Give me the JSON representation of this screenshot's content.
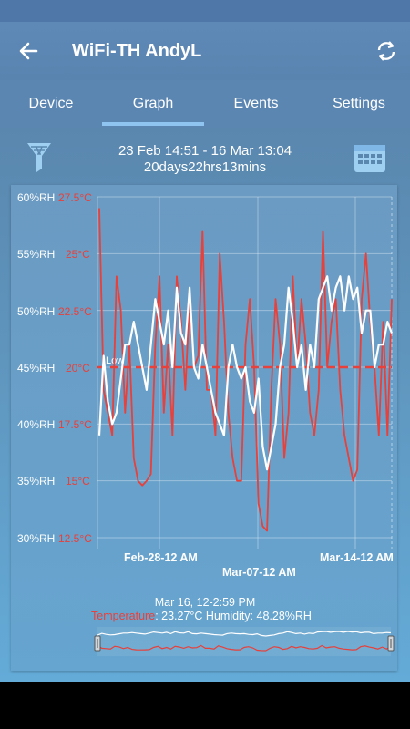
{
  "app": {
    "title": "WiFi-TH AndyL",
    "tabs": [
      {
        "label": "Device"
      },
      {
        "label": "Graph",
        "active": true
      },
      {
        "label": "Events"
      },
      {
        "label": "Settings"
      }
    ]
  },
  "range": {
    "dates": "23 Feb 14:51 - 16 Mar 13:04",
    "duration": "20days22hrs13mins"
  },
  "info": {
    "timestamp": "Mar 16, 12-2:59 PM",
    "temp_label": "Temperature",
    "temp_value": ": 23.27°C",
    "humidity": " Humidity: 48.28%RH"
  },
  "colors": {
    "temperature": "#e8403a",
    "humidity": "#ffffff",
    "low_line": "#e8403a"
  },
  "chart_data": {
    "type": "line",
    "y_left_ticks": [
      "60%RH",
      "55%RH",
      "50%RH",
      "45%RH",
      "40%RH",
      "35%RH",
      "30%RH"
    ],
    "y_right_ticks": [
      "27.5°C",
      "25°C",
      "22.5°C",
      "20°C",
      "17.5°C",
      "15°C",
      "12.5°C"
    ],
    "x_ticks": [
      "Feb-28-12 AM",
      "Mar-07-12 AM",
      "Mar-14-12 AM"
    ],
    "low_label": "Low",
    "humidity_ylim": [
      30,
      60
    ],
    "temp_ylim": [
      12.5,
      27.5
    ],
    "low_threshold": 20,
    "series": [
      {
        "name": "Temperature",
        "unit": "°C",
        "values": [
          27,
          19,
          18,
          17,
          24,
          22.5,
          18,
          21,
          16,
          15,
          14.8,
          15,
          15.3,
          21,
          24,
          18,
          21,
          17,
          24,
          22,
          19,
          23,
          20,
          20.5,
          26,
          19,
          19,
          17,
          25,
          22,
          18,
          16,
          15,
          15,
          21,
          23,
          20,
          14,
          13,
          12.8,
          19,
          23,
          21,
          16,
          18,
          24,
          20,
          23,
          21,
          18,
          17,
          19,
          26,
          20,
          22,
          23,
          19,
          17,
          16,
          15,
          15.5,
          23,
          25,
          22,
          20,
          17,
          22,
          17,
          23
        ]
      },
      {
        "name": "Humidity",
        "unit": "%RH",
        "values": [
          39,
          46,
          42,
          40,
          41,
          44,
          47,
          47,
          49,
          47,
          45,
          43,
          47,
          51,
          49,
          47,
          50,
          45,
          52,
          48,
          47,
          52,
          45,
          44,
          47,
          45,
          43,
          41,
          40,
          39,
          45,
          47,
          45,
          44,
          45,
          42,
          41,
          44,
          38,
          36,
          38,
          40,
          45,
          47,
          52,
          49,
          45,
          47,
          43,
          47,
          45,
          51,
          52,
          53,
          50,
          52,
          53,
          50,
          53,
          51,
          52,
          48,
          50,
          50,
          45,
          47,
          47,
          49,
          48
        ]
      }
    ]
  }
}
